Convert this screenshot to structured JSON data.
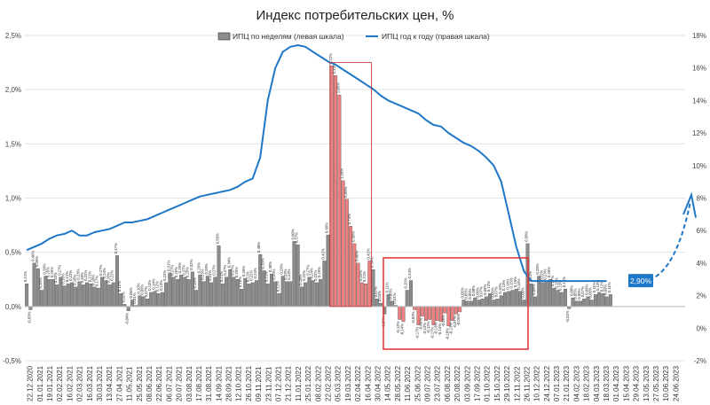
{
  "chart_data": {
    "type": "bar",
    "title": "Индекс потребительских цен, %",
    "legend": {
      "position": "top-center",
      "items": [
        {
          "label": "ИПЦ по неделям (левая шкала)",
          "kind": "bar",
          "color": "#8c8c8c"
        },
        {
          "label": "ИПЦ год к году (правая шкала)",
          "kind": "line",
          "color": "#1f77c8"
        }
      ]
    },
    "y_left": {
      "min": -0.5,
      "max": 2.5,
      "ticks": [
        "-0,5%",
        "0,0%",
        "0,5%",
        "1,0%",
        "1,5%",
        "2,0%",
        "2,5%"
      ]
    },
    "y_right": {
      "min": -2,
      "max": 18,
      "ticks": [
        "-2%",
        "0%",
        "2%",
        "4%",
        "6%",
        "8%",
        "10%",
        "12%",
        "14%",
        "16%",
        "18%"
      ]
    },
    "grid": true,
    "colors": {
      "bar": "#8c8c8c",
      "bar_spike": "#f08080",
      "line": "#1f77c8",
      "frame": "#e03030",
      "badge": "#1f77c8",
      "spike_frame": "#c03030"
    },
    "x_labels": [
      "22.12.2020",
      "01.01.2021",
      "19.01.2021",
      "02.02.2021",
      "16.02.2021",
      "02.03.2021",
      "16.03.2021",
      "30.03.2021",
      "13.04.2021",
      "27.04.2021",
      "11.05.2021",
      "25.05.2021",
      "08.06.2021",
      "22.06.2021",
      "06.07.2021",
      "20.07.2021",
      "03.08.2021",
      "17.08.2021",
      "31.08.2021",
      "14.09.2021",
      "28.09.2021",
      "12.10.2021",
      "26.10.2021",
      "09.11.2021",
      "23.11.2021",
      "07.12.2021",
      "21.12.2021",
      "11.01.2022",
      "25.01.2022",
      "08.02.2022",
      "22.02.2022",
      "05.03.2022",
      "19.03.2022",
      "02.04.2022",
      "16.04.2022",
      "30.04.2022",
      "14.05.2022",
      "28.05.2022",
      "11.06.2022",
      "25.06.2022",
      "09.07.2022",
      "23.07.2022",
      "06.08.2022",
      "20.08.2022",
      "03.09.2022",
      "17.09.2022",
      "01.10.2022",
      "15.10.2022",
      "29.10.2022",
      "12.11.2022",
      "26.11.2022",
      "10.12.2022",
      "24.12.2022",
      "07.01.2023",
      "21.01.2023",
      "04.02.2023",
      "18.02.2023",
      "04.03.2023",
      "18.03.2023",
      "01.04.2023",
      "15.04.2023",
      "29.04.2023",
      "13.05.2023",
      "27.05.2023",
      "10.06.2023",
      "24.06.2023"
    ],
    "weekly_values": [
      0.21,
      -0.03,
      0.4,
      0.35,
      0.15,
      0.28,
      0.25,
      0.25,
      0.2,
      0.27,
      0.19,
      0.21,
      0.22,
      0.18,
      0.23,
      0.2,
      0.22,
      0.21,
      0.18,
      0.17,
      0.27,
      0.24,
      0.2,
      0.22,
      0.47,
      0.12,
      0.02,
      -0.04,
      0.06,
      0.01,
      0.1,
      0.09,
      0.07,
      0.13,
      0.14,
      0.12,
      0.13,
      0.22,
      0.31,
      0.27,
      0.25,
      0.29,
      0.27,
      0.25,
      0.32,
      0.15,
      0.29,
      0.23,
      0.28,
      0.22,
      0.27,
      0.56,
      0.21,
      0.27,
      0.34,
      0.27,
      0.25,
      0.16,
      0.26,
      0.21,
      0.22,
      0.24,
      0.48,
      0.33,
      0.21,
      0.3,
      0.23,
      0.12,
      0.28,
      0.23,
      0.23,
      0.6,
      0.57,
      0.18,
      0.22,
      0.27,
      0.24,
      0.22,
      0.25,
      0.42,
      0.66,
      2.22,
      2.13,
      1.95,
      1.16,
      0.99,
      0.74,
      0.58,
      0.4,
      0.22,
      0.21,
      0.42,
      0.34,
      0.07,
      0.03,
      -0.07,
      0.11,
      0.05,
      0.01,
      -0.12,
      -0.14,
      0.15,
      0.24,
      -0.03,
      -0.17,
      -0.09,
      -0.13,
      -0.12,
      -0.17,
      -0.13,
      -0.14,
      -0.06,
      -0.18,
      -0.13,
      -0.07,
      -0.05,
      0.06,
      0.05,
      0.05,
      0.08,
      0.06,
      0.07,
      0.09,
      0.12,
      0.06,
      0.07,
      0.1,
      0.13,
      0.14,
      0.15,
      0.16,
      0.14,
      0.06,
      0.58,
      0.21,
      0.09,
      0.28,
      0.22,
      0.23,
      0.25,
      0.17,
      0.15,
      0.13,
      0.16,
      -0.02,
      0.08,
      0.05,
      0.05,
      0.07,
      0.09,
      0.06,
      0.11,
      0.13,
      0.12,
      0.09,
      0.11
    ],
    "weekly_labels": [
      "0,21%",
      "-0,03%",
      "0,40%",
      "0,35%",
      "0,15%",
      "0,28%",
      "0,25%",
      "0,25%",
      "0,20%",
      "0,27%",
      "0,19%",
      "0,21%",
      "0,22%",
      "0,18%",
      "0,23%",
      "0,20%",
      "0,22%",
      "0,21%",
      "0,18%",
      "0,17%",
      "0,27%",
      "0,24%",
      "0,20%",
      "0,22%",
      "0,47%",
      "0,12%",
      "0,02%",
      "-0,04%",
      "0,06%",
      "0,01%",
      "0,10%",
      "0,09%",
      "0,07%",
      "0,13%",
      "0,14%",
      "0,12%",
      "0,13%",
      "0,22%",
      "0,31%",
      "0,27%",
      "0,25%",
      "0,29%",
      "0,27%",
      "0,25%",
      "0,32%",
      "0,15%",
      "0,29%",
      "0,23%",
      "0,28%",
      "0,22%",
      "0,27%",
      "0,56%",
      "0,21%",
      "0,27%",
      "0,34%",
      "0,27%",
      "0,25%",
      "0,16%",
      "0,26%",
      "0,21%",
      "0,22%",
      "0,24%",
      "0,48%",
      "0,33%",
      "0,21%",
      "0,30%",
      "0,23%",
      "0,12%",
      "0,28%",
      "0,23%",
      "0,23%",
      "0,60%",
      "0,57%",
      "0,18%",
      "0,22%",
      "0,27%",
      "0,24%",
      "0,22%",
      "0,25%",
      "0,42%",
      "0,66%",
      "2,22%",
      "2,13%",
      "1,95%",
      "1,16%",
      "0,99%",
      "0,74%",
      "0,58%",
      "0,40%",
      "0,22%",
      "0,21%",
      "0,42%",
      "0,34%",
      "0,07%",
      "0,03%",
      "-0,07%",
      "0,11%",
      "0,05%",
      "0,01%",
      "-0,12%",
      "-0,14%",
      "0,15%",
      "0,24%",
      "-0,03%",
      "-0,17%",
      "-0,09%",
      "-0,13%",
      "-0,12%",
      "-0,17%",
      "-0,13%",
      "-0,14%",
      "-0,06%",
      "-0,18%",
      "-0,13%",
      "-0,07%",
      "-0,05%",
      "0,06%",
      "0,05%",
      "0,05%",
      "0,08%",
      "0,06%",
      "0,07%",
      "0,09%",
      "0,12%",
      "0,06%",
      "0,07%",
      "0,10%",
      "0,13%",
      "0,14%",
      "0,15%",
      "0,16%",
      "0,14%",
      "0,06%",
      "0,58%",
      "0,21%",
      "0,09%",
      "0,28%",
      "0,22%",
      "0,23%",
      "0,25%",
      "0,17%",
      "0,15%",
      "0,13%",
      "0,16%",
      "-0,02%",
      "0,08%",
      "0,05%",
      "0,05%",
      "0,07%",
      "0,09%",
      "0,06%",
      "0,11%",
      "0,13%",
      "0,12%",
      "0,09%",
      "0,11%"
    ],
    "yoy_series": {
      "name": "ИПЦ год к году (правая шкала)",
      "x_weeks": [
        0,
        2,
        4,
        6,
        8,
        10,
        12,
        14,
        16,
        18,
        20,
        22,
        24,
        26,
        28,
        30,
        32,
        34,
        36,
        38,
        40,
        42,
        44,
        46,
        48,
        50,
        52,
        54,
        56,
        58,
        60,
        62,
        64,
        66,
        68,
        70,
        72,
        74,
        76,
        78,
        80,
        82,
        84,
        86,
        88,
        90,
        92,
        94,
        96,
        98,
        100,
        102,
        104,
        106,
        108,
        110,
        112,
        114,
        116,
        118,
        120,
        122,
        124,
        126,
        128,
        130,
        132,
        134,
        136,
        138,
        140,
        142,
        144,
        146,
        148,
        150,
        152,
        154,
        156,
        158
      ],
      "values": [
        4.8,
        5.0,
        5.2,
        5.5,
        5.7,
        5.8,
        6.0,
        5.7,
        5.7,
        5.9,
        6.0,
        6.1,
        6.3,
        6.5,
        6.5,
        6.6,
        6.7,
        6.9,
        7.1,
        7.3,
        7.5,
        7.7,
        7.9,
        8.1,
        8.2,
        8.3,
        8.4,
        8.5,
        8.7,
        9.0,
        9.2,
        10.5,
        14.0,
        16.0,
        17.0,
        17.3,
        17.4,
        17.3,
        17.0,
        16.7,
        16.4,
        16.2,
        15.9,
        15.6,
        15.3,
        15.0,
        14.7,
        14.3,
        14.0,
        13.8,
        13.6,
        13.4,
        13.2,
        12.8,
        12.5,
        12.4,
        12.0,
        11.7,
        11.4,
        11.2,
        10.9,
        10.5,
        10.0,
        9.0,
        7.0,
        5.0,
        3.5,
        2.9,
        2.9,
        2.9,
        2.9,
        2.9,
        2.9,
        2.9,
        2.9,
        2.9,
        2.9,
        2.9,
        2.9,
        2.9
      ]
    },
    "annotations": {
      "badge": "2,90%"
    }
  }
}
